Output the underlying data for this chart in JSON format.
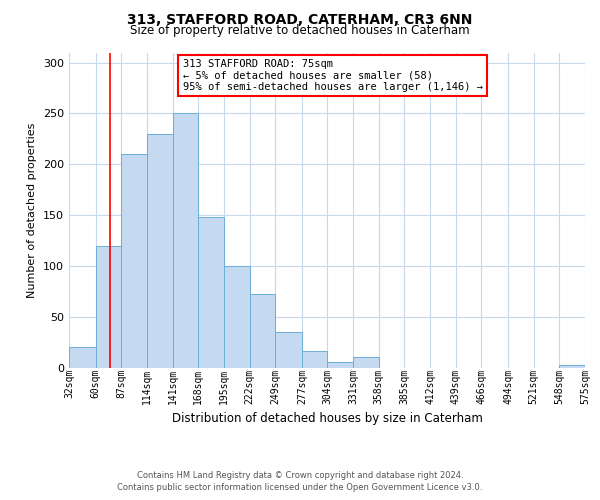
{
  "title": "313, STAFFORD ROAD, CATERHAM, CR3 6NN",
  "subtitle": "Size of property relative to detached houses in Caterham",
  "xlabel": "Distribution of detached houses by size in Caterham",
  "ylabel": "Number of detached properties",
  "bar_color": "#c5d9f0",
  "bar_edge_color": "#6baed6",
  "background_color": "#ffffff",
  "grid_color": "#c8d8ec",
  "red_line_x": 75,
  "annotation_title": "313 STAFFORD ROAD: 75sqm",
  "annotation_line1": "← 5% of detached houses are smaller (58)",
  "annotation_line2": "95% of semi-detached houses are larger (1,146) →",
  "footer_line1": "Contains HM Land Registry data © Crown copyright and database right 2024.",
  "footer_line2": "Contains public sector information licensed under the Open Government Licence v3.0.",
  "bin_edges": [
    32,
    60,
    87,
    114,
    141,
    168,
    195,
    222,
    249,
    277,
    304,
    331,
    358,
    385,
    412,
    439,
    466,
    494,
    521,
    548,
    575
  ],
  "bin_heights": [
    20,
    120,
    210,
    230,
    250,
    148,
    100,
    72,
    35,
    16,
    5,
    10,
    0,
    0,
    0,
    0,
    0,
    0,
    0,
    2
  ],
  "yticks": [
    0,
    50,
    100,
    150,
    200,
    250,
    300
  ],
  "ylim": [
    0,
    310
  ],
  "xtick_labels": [
    "32sqm",
    "60sqm",
    "87sqm",
    "114sqm",
    "141sqm",
    "168sqm",
    "195sqm",
    "222sqm",
    "249sqm",
    "277sqm",
    "304sqm",
    "331sqm",
    "358sqm",
    "385sqm",
    "412sqm",
    "439sqm",
    "466sqm",
    "494sqm",
    "521sqm",
    "548sqm",
    "575sqm"
  ]
}
